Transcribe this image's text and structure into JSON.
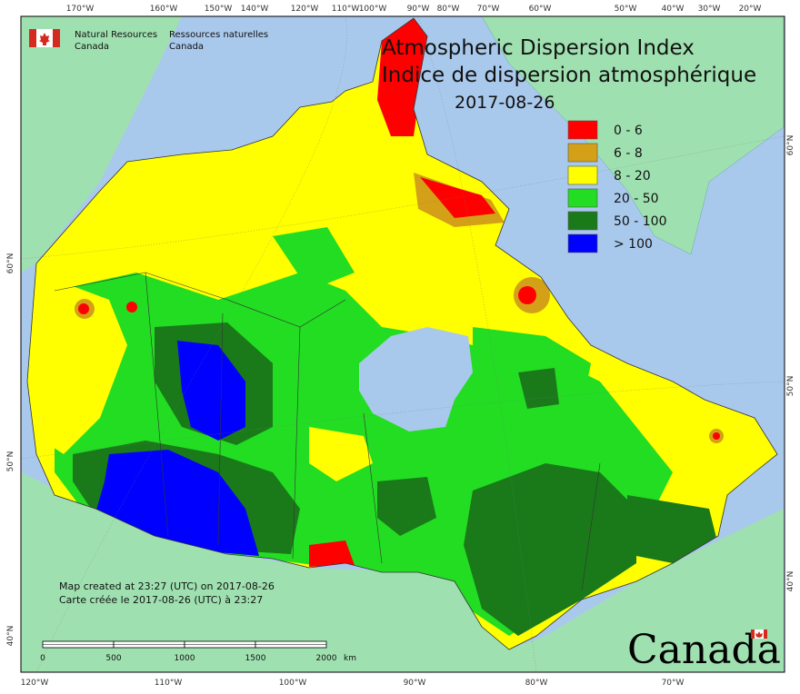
{
  "title": {
    "en": "Atmospheric Dispersion Index",
    "fr": "Indice de dispersion atmosphérique",
    "date": "2017-08-26"
  },
  "signature": {
    "en_line1": "Natural Resources",
    "en_line2": "Canada",
    "fr_line1": "Ressources naturelles",
    "fr_line2": "Canada"
  },
  "legend": {
    "items": [
      {
        "label": "0 - 6",
        "color": "#ff0000"
      },
      {
        "label": "6 - 8",
        "color": "#d4a017"
      },
      {
        "label": "8 - 20",
        "color": "#ffff00"
      },
      {
        "label": "20 - 50",
        "color": "#22dd22"
      },
      {
        "label": "50 - 100",
        "color": "#1a7a1a"
      },
      {
        "label": "> 100",
        "color": "#0000ff"
      }
    ]
  },
  "map_note": {
    "line1": "Map created at 23:27 (UTC) on 2017-08-26",
    "line2": "Carte créée le 2017-08-26 (UTC) à 23:27"
  },
  "scale_bar": {
    "labels": [
      "0",
      "500",
      "1000",
      "1500",
      "2000"
    ],
    "unit": "km"
  },
  "wordmark": "Canada",
  "top_ticks": [
    "170°W",
    "160°W",
    "150°W",
    "140°W",
    "120°W",
    "110°W",
    "100°W",
    "90°W",
    "80°W",
    "70°W",
    "60°W",
    "50°W",
    "40°W",
    "30°W",
    "20°W"
  ],
  "bottom_ticks": [
    "120°W",
    "110°W",
    "100°W",
    "90°W",
    "80°W",
    "70°W"
  ],
  "left_ticks": [
    "60°N",
    "50°N",
    "40°N"
  ],
  "right_ticks": [
    "60°N",
    "50°N",
    "40°N"
  ],
  "colors": {
    "ocean": "#a9c9ec",
    "foreign_land": "#9fe0b0",
    "border": "#333333"
  }
}
